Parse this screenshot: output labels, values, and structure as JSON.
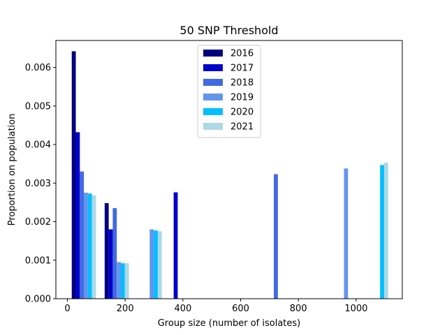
{
  "chart_data": {
    "type": "bar",
    "title": "50 SNP Threshold",
    "xlabel": "Group size (number of isolates)",
    "ylabel": "Proportion on population",
    "xlim": [
      -40,
      1160
    ],
    "ylim": [
      0,
      0.0067
    ],
    "xticks": [
      0,
      200,
      400,
      600,
      800,
      1000
    ],
    "xtick_labels": [
      "0",
      "200",
      "400",
      "600",
      "800",
      "1000"
    ],
    "yticks": [
      0,
      0.001,
      0.002,
      0.003,
      0.004,
      0.005,
      0.006
    ],
    "ytick_labels": [
      "0.000",
      "0.001",
      "0.002",
      "0.003",
      "0.004",
      "0.005",
      "0.006"
    ],
    "bar_width_data": 14,
    "legend_position": "top-center",
    "series": [
      {
        "name": "2016",
        "color": "#000080",
        "points": [
          [
            22,
            0.00642
          ],
          [
            136,
            0.00248
          ]
        ]
      },
      {
        "name": "2017",
        "color": "#0000cd",
        "points": [
          [
            36,
            0.00432
          ],
          [
            150,
            0.0018
          ],
          [
            375,
            0.00276
          ]
        ]
      },
      {
        "name": "2018",
        "color": "#4169e1",
        "points": [
          [
            50,
            0.0033
          ],
          [
            164,
            0.00235
          ],
          [
            722,
            0.00323
          ]
        ]
      },
      {
        "name": "2019",
        "color": "#6495ed",
        "points": [
          [
            64,
            0.00275
          ],
          [
            178,
            0.00095
          ],
          [
            292,
            0.0018
          ],
          [
            965,
            0.00338
          ]
        ]
      },
      {
        "name": "2020",
        "color": "#00bfff",
        "points": [
          [
            78,
            0.00273
          ],
          [
            192,
            0.00092
          ],
          [
            306,
            0.00177
          ],
          [
            1090,
            0.00347
          ]
        ]
      },
      {
        "name": "2021",
        "color": "#add8e6",
        "points": [
          [
            92,
            0.00268
          ],
          [
            206,
            0.00092
          ],
          [
            320,
            0.00175
          ],
          [
            1104,
            0.00353
          ]
        ]
      }
    ]
  }
}
